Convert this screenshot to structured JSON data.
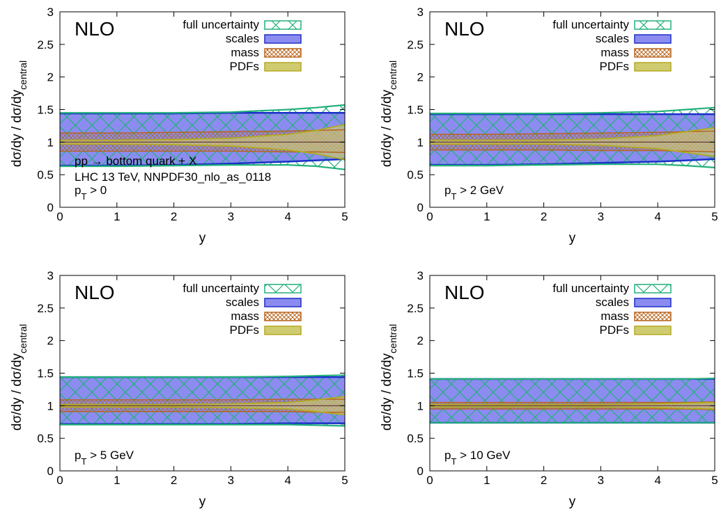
{
  "figure": {
    "legend_labels": [
      "full uncertainty",
      "scales",
      "mass",
      "PDFs"
    ],
    "xlabel": "y",
    "ylabel_main": "dσ/dy / dσ/dy",
    "ylabel_sub": "central",
    "order_label": "NLO",
    "process_label": "pp → bottom quark + X",
    "setup_label": "LHC 13 TeV, NNPDF30_nlo_as_0118",
    "colors": {
      "full": "#22b07a",
      "scales_fill": "#8c8cf0",
      "scales_edge": "#1a2fc8",
      "mass": "#b8651e",
      "pdf_fill": "#cfcb70",
      "pdf_edge": "#b3aa20",
      "central": "#5c2f3a"
    }
  },
  "chart_data": [
    {
      "type": "area",
      "pt_cut": {
        "p": "p",
        "sub": "T",
        "rest": " > 0"
      },
      "x": [
        0,
        1,
        2,
        3,
        4,
        4.5,
        5
      ],
      "xlim": [
        0,
        5
      ],
      "ylim": [
        0,
        3
      ],
      "xticks": [
        "0",
        "1",
        "2",
        "3",
        "4",
        "5"
      ],
      "yticks": [
        "0",
        "0.5",
        "1",
        "1.5",
        "2",
        "2.5",
        "3"
      ],
      "series": [
        {
          "name": "full uncertainty",
          "upper": [
            1.45,
            1.45,
            1.45,
            1.46,
            1.5,
            1.53,
            1.57
          ],
          "lower": [
            0.63,
            0.63,
            0.64,
            0.65,
            0.65,
            0.63,
            0.58
          ]
        },
        {
          "name": "scales",
          "upper": [
            1.44,
            1.44,
            1.44,
            1.45,
            1.45,
            1.45,
            1.45
          ],
          "lower": [
            0.64,
            0.64,
            0.65,
            0.67,
            0.7,
            0.72,
            0.74
          ]
        },
        {
          "name": "mass",
          "upper": [
            1.14,
            1.14,
            1.15,
            1.16,
            1.17,
            1.18,
            1.19
          ],
          "lower": [
            0.86,
            0.86,
            0.86,
            0.86,
            0.85,
            0.85,
            0.84
          ]
        },
        {
          "name": "PDFs",
          "upper": [
            1.03,
            1.03,
            1.04,
            1.06,
            1.12,
            1.18,
            1.27
          ],
          "lower": [
            0.97,
            0.97,
            0.96,
            0.94,
            0.88,
            0.82,
            0.73
          ]
        }
      ],
      "central": 1.0
    },
    {
      "type": "area",
      "pt_cut": {
        "p": "p",
        "sub": "T",
        "rest": " > 2 GeV"
      },
      "x": [
        0,
        1,
        2,
        3,
        4,
        4.5,
        5
      ],
      "xlim": [
        0,
        5
      ],
      "ylim": [
        0,
        3
      ],
      "xticks": [
        "0",
        "1",
        "2",
        "3",
        "4",
        "5"
      ],
      "yticks": [
        "0",
        "0.5",
        "1",
        "1.5",
        "2",
        "2.5",
        "3"
      ],
      "series": [
        {
          "name": "full uncertainty",
          "upper": [
            1.44,
            1.44,
            1.44,
            1.45,
            1.47,
            1.5,
            1.53
          ],
          "lower": [
            0.64,
            0.64,
            0.65,
            0.66,
            0.66,
            0.64,
            0.61
          ]
        },
        {
          "name": "scales",
          "upper": [
            1.43,
            1.43,
            1.43,
            1.43,
            1.43,
            1.43,
            1.43
          ],
          "lower": [
            0.65,
            0.65,
            0.66,
            0.68,
            0.7,
            0.72,
            0.74
          ]
        },
        {
          "name": "mass",
          "upper": [
            1.12,
            1.12,
            1.13,
            1.14,
            1.15,
            1.16,
            1.17
          ],
          "lower": [
            0.88,
            0.88,
            0.88,
            0.87,
            0.87,
            0.86,
            0.85
          ]
        },
        {
          "name": "PDFs",
          "upper": [
            1.03,
            1.03,
            1.03,
            1.05,
            1.1,
            1.16,
            1.22
          ],
          "lower": [
            0.97,
            0.97,
            0.97,
            0.95,
            0.9,
            0.84,
            0.78
          ]
        }
      ],
      "central": 1.0
    },
    {
      "type": "area",
      "pt_cut": {
        "p": "p",
        "sub": "T",
        "rest": " > 5 GeV"
      },
      "x": [
        0,
        1,
        2,
        3,
        4,
        4.5,
        5
      ],
      "xlim": [
        0,
        5
      ],
      "ylim": [
        0,
        3
      ],
      "xticks": [
        "0",
        "1",
        "2",
        "3",
        "4",
        "5"
      ],
      "yticks": [
        "0",
        "0.5",
        "1",
        "1.5",
        "2",
        "2.5",
        "3"
      ],
      "series": [
        {
          "name": "full uncertainty",
          "upper": [
            1.44,
            1.44,
            1.44,
            1.44,
            1.45,
            1.46,
            1.47
          ],
          "lower": [
            0.71,
            0.71,
            0.71,
            0.71,
            0.71,
            0.7,
            0.69
          ]
        },
        {
          "name": "scales",
          "upper": [
            1.44,
            1.44,
            1.44,
            1.44,
            1.44,
            1.44,
            1.44
          ],
          "lower": [
            0.72,
            0.72,
            0.72,
            0.72,
            0.73,
            0.73,
            0.73
          ]
        },
        {
          "name": "mass",
          "upper": [
            1.09,
            1.09,
            1.09,
            1.09,
            1.1,
            1.1,
            1.1
          ],
          "lower": [
            0.91,
            0.91,
            0.91,
            0.91,
            0.91,
            0.9,
            0.9
          ]
        },
        {
          "name": "PDFs",
          "upper": [
            1.02,
            1.02,
            1.02,
            1.03,
            1.05,
            1.09,
            1.14
          ],
          "lower": [
            0.98,
            0.98,
            0.98,
            0.97,
            0.95,
            0.91,
            0.86
          ]
        }
      ],
      "central": 1.0
    },
    {
      "type": "area",
      "pt_cut": {
        "p": "p",
        "sub": "T",
        "rest": " > 10 GeV"
      },
      "x": [
        0,
        1,
        2,
        3,
        4,
        4.5,
        5
      ],
      "xlim": [
        0,
        5
      ],
      "ylim": [
        0,
        3
      ],
      "xticks": [
        "0",
        "1",
        "2",
        "3",
        "4",
        "5"
      ],
      "yticks": [
        "0",
        "0.5",
        "1",
        "1.5",
        "2",
        "2.5",
        "3"
      ],
      "series": [
        {
          "name": "full uncertainty",
          "upper": [
            1.41,
            1.41,
            1.41,
            1.41,
            1.41,
            1.41,
            1.42
          ],
          "lower": [
            0.74,
            0.74,
            0.74,
            0.74,
            0.74,
            0.74,
            0.74
          ]
        },
        {
          "name": "scales",
          "upper": [
            1.41,
            1.41,
            1.41,
            1.41,
            1.41,
            1.41,
            1.41
          ],
          "lower": [
            0.74,
            0.74,
            0.74,
            0.74,
            0.74,
            0.74,
            0.74
          ]
        },
        {
          "name": "mass",
          "upper": [
            1.05,
            1.05,
            1.05,
            1.05,
            1.05,
            1.05,
            1.06
          ],
          "lower": [
            0.95,
            0.95,
            0.95,
            0.95,
            0.95,
            0.95,
            0.94
          ]
        },
        {
          "name": "PDFs",
          "upper": [
            1.02,
            1.02,
            1.02,
            1.02,
            1.03,
            1.04,
            1.05
          ],
          "lower": [
            0.98,
            0.98,
            0.98,
            0.98,
            0.97,
            0.96,
            0.95
          ]
        }
      ],
      "central": 1.0
    }
  ]
}
